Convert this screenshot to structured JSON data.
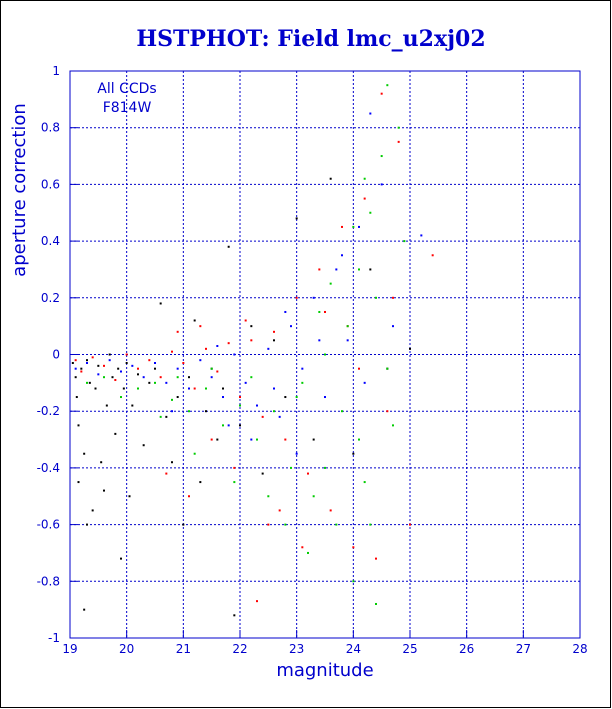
{
  "chart_data": {
    "type": "scatter",
    "title": "HSTPHOT: Field lmc_u2xj02",
    "xlabel": "magnitude",
    "ylabel": "aperture correction",
    "xlim": [
      19,
      28
    ],
    "ylim": [
      -1,
      1
    ],
    "xticks": [
      19,
      20,
      21,
      22,
      23,
      24,
      25,
      26,
      27,
      28
    ],
    "yticks": [
      -1,
      -0.8,
      -0.6,
      -0.4,
      -0.2,
      0,
      0.2,
      0.4,
      0.6,
      0.8,
      1
    ],
    "grid": true,
    "annotations": [
      "All CCDs",
      "F814W"
    ],
    "colors": {
      "axis": "#0000cc",
      "title": "#0000cc",
      "grid": "#0000cc",
      "border": "#000000"
    },
    "series": [
      {
        "color": "#000000",
        "points": [
          [
            19.05,
            -0.03
          ],
          [
            19.1,
            -0.08
          ],
          [
            19.12,
            -0.15
          ],
          [
            19.15,
            -0.25
          ],
          [
            19.2,
            -0.05
          ],
          [
            19.25,
            -0.35
          ],
          [
            19.3,
            -0.02
          ],
          [
            19.35,
            -0.1
          ],
          [
            19.4,
            -0.55
          ],
          [
            19.45,
            -0.12
          ],
          [
            19.5,
            -0.04
          ],
          [
            19.55,
            -0.38
          ],
          [
            19.6,
            -0.48
          ],
          [
            19.65,
            -0.18
          ],
          [
            19.7,
            0.0
          ],
          [
            19.75,
            -0.08
          ],
          [
            19.8,
            -0.28
          ],
          [
            19.85,
            -0.05
          ],
          [
            19.9,
            -0.72
          ],
          [
            19.95,
            -0.12
          ],
          [
            20.0,
            -0.03
          ],
          [
            20.05,
            -0.5
          ],
          [
            20.1,
            -0.18
          ],
          [
            20.2,
            -0.07
          ],
          [
            20.3,
            -0.32
          ],
          [
            20.4,
            -0.1
          ],
          [
            20.5,
            -0.05
          ],
          [
            20.6,
            0.18
          ],
          [
            20.7,
            -0.22
          ],
          [
            20.8,
            -0.38
          ],
          [
            20.9,
            -0.15
          ],
          [
            21.0,
            -0.6
          ],
          [
            21.1,
            -0.08
          ],
          [
            21.2,
            0.12
          ],
          [
            21.3,
            -0.45
          ],
          [
            21.4,
            -0.2
          ],
          [
            21.5,
            -0.05
          ],
          [
            21.6,
            -0.3
          ],
          [
            21.7,
            -0.12
          ],
          [
            21.8,
            0.38
          ],
          [
            21.9,
            -0.92
          ],
          [
            22.0,
            -0.25
          ],
          [
            22.2,
            0.1
          ],
          [
            22.4,
            -0.42
          ],
          [
            22.6,
            0.05
          ],
          [
            22.8,
            -0.15
          ],
          [
            23.0,
            0.48
          ],
          [
            23.3,
            -0.3
          ],
          [
            23.6,
            0.62
          ],
          [
            24.0,
            -0.35
          ],
          [
            24.3,
            0.3
          ],
          [
            24.6,
            -0.05
          ],
          [
            25.0,
            0.02
          ],
          [
            19.3,
            -0.6
          ],
          [
            19.15,
            -0.45
          ],
          [
            19.25,
            -0.9
          ]
        ]
      },
      {
        "color": "#ff0000",
        "points": [
          [
            19.1,
            -0.02
          ],
          [
            19.2,
            -0.06
          ],
          [
            19.4,
            -0.01
          ],
          [
            19.6,
            -0.04
          ],
          [
            19.8,
            -0.09
          ],
          [
            20.0,
            0.0
          ],
          [
            20.2,
            -0.05
          ],
          [
            20.4,
            -0.02
          ],
          [
            20.6,
            -0.08
          ],
          [
            20.8,
            0.01
          ],
          [
            21.0,
            -0.03
          ],
          [
            21.2,
            -0.12
          ],
          [
            21.4,
            0.02
          ],
          [
            21.6,
            -0.06
          ],
          [
            21.8,
            0.04
          ],
          [
            22.0,
            -0.15
          ],
          [
            22.2,
            0.05
          ],
          [
            22.4,
            -0.22
          ],
          [
            22.6,
            0.08
          ],
          [
            22.8,
            -0.3
          ],
          [
            23.0,
            0.2
          ],
          [
            23.2,
            -0.42
          ],
          [
            23.4,
            0.3
          ],
          [
            23.6,
            -0.55
          ],
          [
            23.8,
            0.45
          ],
          [
            24.0,
            -0.68
          ],
          [
            24.2,
            0.55
          ],
          [
            24.4,
            -0.72
          ],
          [
            24.5,
            0.92
          ],
          [
            24.6,
            -0.2
          ],
          [
            24.8,
            0.75
          ],
          [
            25.0,
            -0.6
          ],
          [
            25.4,
            0.35
          ],
          [
            20.7,
            -0.42
          ],
          [
            21.1,
            -0.5
          ],
          [
            21.5,
            -0.3
          ],
          [
            21.9,
            -0.4
          ],
          [
            22.3,
            -0.87
          ],
          [
            22.7,
            -0.55
          ],
          [
            23.1,
            -0.68
          ],
          [
            23.5,
            0.15
          ],
          [
            23.9,
            0.1
          ],
          [
            24.1,
            -0.05
          ],
          [
            24.7,
            0.2
          ],
          [
            22.1,
            0.12
          ],
          [
            22.5,
            -0.6
          ],
          [
            20.9,
            0.08
          ],
          [
            21.3,
            0.1
          ]
        ]
      },
      {
        "color": "#0000ff",
        "points": [
          [
            19.1,
            -0.05
          ],
          [
            19.3,
            -0.03
          ],
          [
            19.5,
            -0.07
          ],
          [
            19.7,
            -0.02
          ],
          [
            19.9,
            -0.06
          ],
          [
            20.1,
            -0.04
          ],
          [
            20.3,
            -0.08
          ],
          [
            20.5,
            -0.03
          ],
          [
            20.7,
            -0.1
          ],
          [
            20.9,
            -0.05
          ],
          [
            21.1,
            -0.12
          ],
          [
            21.3,
            -0.02
          ],
          [
            21.5,
            -0.08
          ],
          [
            21.7,
            -0.15
          ],
          [
            21.9,
            0.0
          ],
          [
            22.1,
            -0.1
          ],
          [
            22.3,
            -0.18
          ],
          [
            22.5,
            0.02
          ],
          [
            22.7,
            -0.22
          ],
          [
            22.9,
            0.1
          ],
          [
            23.1,
            -0.05
          ],
          [
            23.3,
            0.2
          ],
          [
            23.5,
            -0.15
          ],
          [
            23.7,
            0.3
          ],
          [
            23.9,
            0.05
          ],
          [
            24.1,
            0.45
          ],
          [
            24.3,
            0.85
          ],
          [
            24.5,
            0.6
          ],
          [
            24.7,
            0.1
          ],
          [
            25.2,
            0.42
          ],
          [
            21.8,
            -0.25
          ],
          [
            22.2,
            -0.3
          ],
          [
            22.6,
            -0.12
          ],
          [
            23.0,
            -0.35
          ],
          [
            23.4,
            0.05
          ],
          [
            23.8,
            0.35
          ],
          [
            24.2,
            -0.1
          ],
          [
            20.8,
            -0.2
          ],
          [
            21.6,
            0.03
          ],
          [
            22.8,
            0.15
          ]
        ]
      },
      {
        "color": "#00cc00",
        "points": [
          [
            19.3,
            -0.1
          ],
          [
            19.6,
            -0.08
          ],
          [
            19.9,
            -0.15
          ],
          [
            20.2,
            -0.12
          ],
          [
            20.5,
            -0.1
          ],
          [
            20.8,
            -0.16
          ],
          [
            21.1,
            -0.2
          ],
          [
            21.4,
            -0.12
          ],
          [
            21.7,
            -0.25
          ],
          [
            22.0,
            -0.18
          ],
          [
            22.3,
            -0.3
          ],
          [
            22.6,
            -0.2
          ],
          [
            22.9,
            -0.4
          ],
          [
            23.1,
            -0.1
          ],
          [
            23.3,
            -0.5
          ],
          [
            23.5,
            0.0
          ],
          [
            23.7,
            -0.6
          ],
          [
            23.9,
            0.1
          ],
          [
            24.0,
            -0.8
          ],
          [
            24.1,
            0.3
          ],
          [
            24.2,
            -0.45
          ],
          [
            24.3,
            0.5
          ],
          [
            24.4,
            -0.88
          ],
          [
            24.5,
            0.7
          ],
          [
            24.6,
            0.95
          ],
          [
            24.7,
            -0.25
          ],
          [
            24.8,
            0.8
          ],
          [
            24.9,
            0.4
          ],
          [
            23.4,
            0.15
          ],
          [
            23.6,
            0.25
          ],
          [
            23.8,
            -0.2
          ],
          [
            24.0,
            0.45
          ],
          [
            24.2,
            0.62
          ],
          [
            22.5,
            -0.5
          ],
          [
            22.8,
            -0.6
          ],
          [
            23.2,
            -0.7
          ],
          [
            21.9,
            -0.45
          ],
          [
            21.2,
            -0.35
          ],
          [
            20.6,
            -0.22
          ],
          [
            24.4,
            0.2
          ],
          [
            24.6,
            -0.05
          ],
          [
            23.0,
            -0.15
          ],
          [
            22.2,
            -0.08
          ],
          [
            21.5,
            -0.05
          ],
          [
            20.9,
            -0.08
          ],
          [
            24.1,
            -0.3
          ],
          [
            24.3,
            -0.6
          ],
          [
            23.5,
            -0.4
          ]
        ]
      }
    ]
  }
}
